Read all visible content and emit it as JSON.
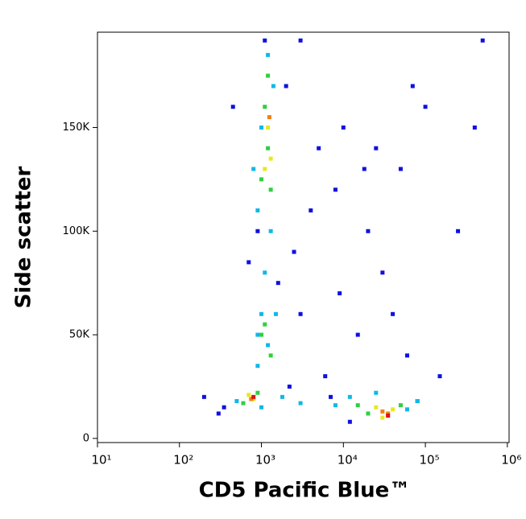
{
  "chart_data": {
    "type": "scatter",
    "xlabel": "CD5 Pacific Blue™",
    "ylabel": "Side scatter",
    "xscale": "log",
    "xlim": [
      10,
      1050000
    ],
    "ylim": [
      -2000,
      196000
    ],
    "xticks": [
      {
        "value": 10,
        "label": "10¹"
      },
      {
        "value": 100,
        "label": "10²"
      },
      {
        "value": 1000,
        "label": "10³"
      },
      {
        "value": 10000,
        "label": "10⁴"
      },
      {
        "value": 100000,
        "label": "10⁵"
      },
      {
        "value": 1000000,
        "label": "10⁶"
      }
    ],
    "yticks": [
      0,
      {
        "value": 50000,
        "label": "50K"
      },
      {
        "value": 100000,
        "label": "100K"
      },
      {
        "value": 150000,
        "label": "150K"
      }
    ],
    "series": [
      {
        "color": "#1010e0",
        "x": [
          2000,
          5000,
          8000,
          20000,
          3000,
          30000,
          50000,
          100000,
          400000,
          6000,
          200,
          300,
          15000,
          60000,
          900,
          1600,
          2500,
          4000,
          10000,
          40000,
          7000,
          12000,
          80000,
          700,
          1100,
          3000,
          500000,
          250000,
          150000,
          9000,
          450,
          350,
          2200,
          70000,
          18000,
          25000
        ],
        "y": [
          170000,
          140000,
          120000,
          100000,
          60000,
          80000,
          130000,
          160000,
          150000,
          30000,
          20000,
          12000,
          50000,
          40000,
          100000,
          75000,
          90000,
          110000,
          150000,
          60000,
          20000,
          8000,
          18000,
          85000,
          192000,
          192000,
          192000,
          100000,
          30000,
          70000,
          160000,
          15000,
          25000,
          170000,
          130000,
          140000
        ]
      },
      {
        "color": "#10b8e8",
        "x": [
          1000,
          800,
          900,
          1300,
          1100,
          1000,
          1200,
          900,
          500,
          1000,
          1800,
          3000,
          8000,
          12000,
          60000,
          80000,
          1400,
          1200,
          1500,
          25000,
          900
        ],
        "y": [
          150000,
          130000,
          110000,
          100000,
          80000,
          60000,
          45000,
          35000,
          18000,
          15000,
          20000,
          17000,
          16000,
          20000,
          14000,
          18000,
          170000,
          185000,
          60000,
          22000,
          50000
        ]
      },
      {
        "color": "#30d040",
        "x": [
          1100,
          1200,
          1000,
          1300,
          1100,
          1000,
          1300,
          600,
          900,
          15000,
          20000,
          50000,
          1200
        ],
        "y": [
          160000,
          140000,
          125000,
          120000,
          55000,
          50000,
          40000,
          17000,
          22000,
          16000,
          12000,
          16000,
          175000
        ]
      },
      {
        "color": "#e8e820",
        "x": [
          1200,
          1300,
          1100,
          700,
          800,
          25000,
          40000,
          30000
        ],
        "y": [
          150000,
          135000,
          130000,
          21000,
          19000,
          15000,
          14000,
          10000
        ]
      },
      {
        "color": "#f08010",
        "x": [
          1250,
          750,
          35000,
          30000
        ],
        "y": [
          155000,
          19000,
          12000,
          13000
        ]
      },
      {
        "color": "#e01010",
        "x": [
          800,
          35000
        ],
        "y": [
          20000,
          11000
        ]
      }
    ]
  }
}
